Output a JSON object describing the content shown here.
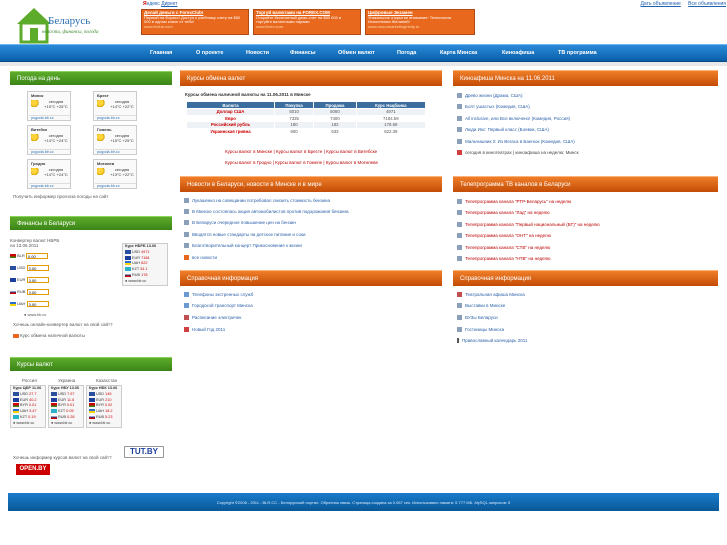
{
  "topbar": {
    "yandex_prefix": "Я",
    "yandex_rest": "ндекс",
    "direct": "Директ",
    "links": [
      "Дать объявление",
      "Все объявления"
    ]
  },
  "logo": {
    "title": "Беларусь",
    "subtitle": "новости, финансы, погода"
  },
  "ads": [
    {
      "title": "Делай деньги с ForexClub!",
      "text": "Первый на Форекс! Доступ к учебному счету на $50 000 в одном клике от тебя!",
      "url": "www.fxclub.com"
    },
    {
      "title": "Торгуй валютами на FOREX.COM",
      "text": "Откройте бесплатный демо-счет на $50 000 и торгуйте валютными парами",
      "url": "www.forex.com"
    },
    {
      "title": "Цифровые Экзамен",
      "text": "Уникальное открытие внимание: Технология Исполнения Желаний!",
      "url": "www.neuromarketingtrinity.ru"
    }
  ],
  "nav": [
    "Главная",
    "О проекте",
    "Новости",
    "Финансы",
    "Обмен валют",
    "Погода",
    "Карта Минска",
    "Киноафиша",
    "ТВ программа"
  ],
  "weather": {
    "title": "Погода на день",
    "cities": [
      {
        "name": "Минск",
        "label": "сегодня",
        "temp": "+15°C +25°C"
      },
      {
        "name": "Брест",
        "label": "сегодня",
        "temp": "+14°C +22°C"
      },
      {
        "name": "Витебск",
        "label": "сегодня",
        "temp": "+14°C +24°C"
      },
      {
        "name": "Гомель",
        "label": "сегодня",
        "temp": "+15°C +25°C"
      },
      {
        "name": "Гродно",
        "label": "сегодня",
        "temp": "+14°C +24°C"
      },
      {
        "name": "Могилев",
        "label": "сегодня",
        "temp": "+13°C +22°C"
      }
    ],
    "site": "pogoda.blr.cc",
    "informer_link": "Получить информер прогноза погоды на сайт"
  },
  "finance": {
    "title": "Финансы в Беларуси",
    "converter_title": "Конвертер валют НБРБ",
    "converter_date": "на 13.06.2011",
    "rows": [
      "BLR",
      "USD",
      "EUR",
      "RUB",
      "UAH"
    ],
    "default_value": "0.00",
    "nbrb_title": "Курс НБРБ 13.06",
    "nbrb": [
      {
        "c": "USD",
        "v": "4971"
      },
      {
        "c": "EUR",
        "v": "7184"
      },
      {
        "c": "UAH",
        "v": "622"
      },
      {
        "c": "KZT",
        "v": "34.1"
      },
      {
        "c": "RUB",
        "v": "178"
      }
    ],
    "site": "www.blr.cc",
    "site2": "www.blr.cc",
    "converter_link": "Хочешь онлайн-конвертер валют на свой сайт?",
    "cash_link": "Курс обмена наличной валюты"
  },
  "rates": {
    "title": "Курсы валют",
    "columns": [
      "Россия",
      "Украина",
      "Казахстан"
    ],
    "heads": [
      "Курс ЦБР 11.06",
      "Курс НБУ 13.06",
      "Курс НБК 13.06"
    ],
    "russia": [
      {
        "c": "USD",
        "v": "27.7"
      },
      {
        "c": "EUR",
        "v": "40.2"
      },
      {
        "c": "BYR",
        "v": "0.01"
      },
      {
        "c": "UAH",
        "v": "3.47"
      },
      {
        "c": "KZT",
        "v": "0.19"
      }
    ],
    "ukraine": [
      {
        "c": "USD",
        "v": "7.97"
      },
      {
        "c": "EUR",
        "v": "11.6"
      },
      {
        "c": "BYR",
        "v": "0.01"
      },
      {
        "c": "KZT",
        "v": "0.05"
      },
      {
        "c": "RUB",
        "v": "0.28"
      }
    ],
    "kazakh": [
      {
        "c": "USD",
        "v": "145"
      },
      {
        "c": "EUR",
        "v": "210"
      },
      {
        "c": "BYR",
        "v": "0.02"
      },
      {
        "c": "UAH",
        "v": "18.2"
      },
      {
        "c": "RUB",
        "v": "5.23"
      }
    ],
    "site": "www.blr.cc",
    "informer_link": "Хочешь информер курсов валют на свой сайт?",
    "tutby": "TUT.BY",
    "openby": "OPEN.BY"
  },
  "exchange": {
    "title": "Курсы обмена валют",
    "subtitle": "Курсы обмена наличной валюты на 11.06.2011 в Минске",
    "headers": [
      "Валюта",
      "Покупка",
      "Продажа",
      "Курс Нацбанка"
    ],
    "rows": [
      {
        "c": "Доллар США",
        "buy": "5010",
        "sell": "5060",
        "nb": "4971"
      },
      {
        "c": "Евро",
        "buy": "7335",
        "sell": "7400",
        "nb": "7184.59"
      },
      {
        "c": "Российский рубль",
        "buy": "180",
        "sell": "182",
        "nb": "178.69"
      },
      {
        "c": "Украинская гривна",
        "buy": "600",
        "sell": "633",
        "nb": "622.39"
      }
    ],
    "links1": "Курсы валют в Минске | Курсы валют в Бресте | Курсы валют в Витебске",
    "links2": "Курсы валют в Гродно | Курсы валют в Гомеле | Курсы валют в Могилеве"
  },
  "news": {
    "title": "Новости в Беларуси, новости в Минске и в мире",
    "items": [
      "Лукашенко на совещании потребовал снизить стоимость бензина",
      "В Минске состоялась акция автомобилистов против подорожания бензина",
      "В Беларуси очередное повышение цен на бензин",
      "Вводятся новые стандарты на детское питание и соки",
      "Благотворительный концерт Прикосновение к жизни",
      "все новости"
    ]
  },
  "info_left": {
    "title": "Справочная информация",
    "items": [
      "Телефоны экстренных служб",
      "Городской транспорт Минска",
      "Расписание электричек",
      "Новый Год 2011"
    ]
  },
  "cinema": {
    "title": "Киноафиша Минска на 11.06.2011",
    "items": [
      "Древо жизни (Драма, США)",
      "Болт ушастых (Комедия, США)",
      "All inclusive, или Все включено! (Комедия, Россия)",
      "Люди Икс: Первый класс (Боевик, США)",
      "Мальчишник 2: Из Вегаса в Бангкок (Комедия, США)"
    ],
    "bottom": "сегодня в кинотеатрах | киноафиша на неделю: Минск"
  },
  "tv": {
    "title": "Телепрограмма ТВ каналов в Беларуси",
    "items": [
      "Телепрограмма канала \"РТР-Беларусь\" на неделю",
      "Телепрограмма канала \"Лад\" на неделю",
      "Телепрограмма канала \"Первый национальный (БТ)\" на неделю",
      "Телепрограмма канала \"ОНТ\" на неделю",
      "Телепрограмма канала \"СТВ\" на неделю",
      "Телепрограмма канала \"НТВ\" на неделю"
    ]
  },
  "info_right": {
    "title": "Справочная информация",
    "items": [
      "Театральная афиша Минска",
      "Выставки в Минске",
      "ВУЗы Беларуси",
      "Гостиницы Минска",
      "Православный календарь 2011"
    ]
  },
  "footer": "Copyright ©2008 - 2011 - BLR.CC - Белорусский портал. Обратная связь. Страница создана за 0.067 сек. Использовано памяти: 5 777 МБ. MySQL запросов: 5",
  "colors": {
    "nav": "#0a5ea8",
    "green_head": "#3a8417",
    "orange_head": "#e8691e"
  }
}
